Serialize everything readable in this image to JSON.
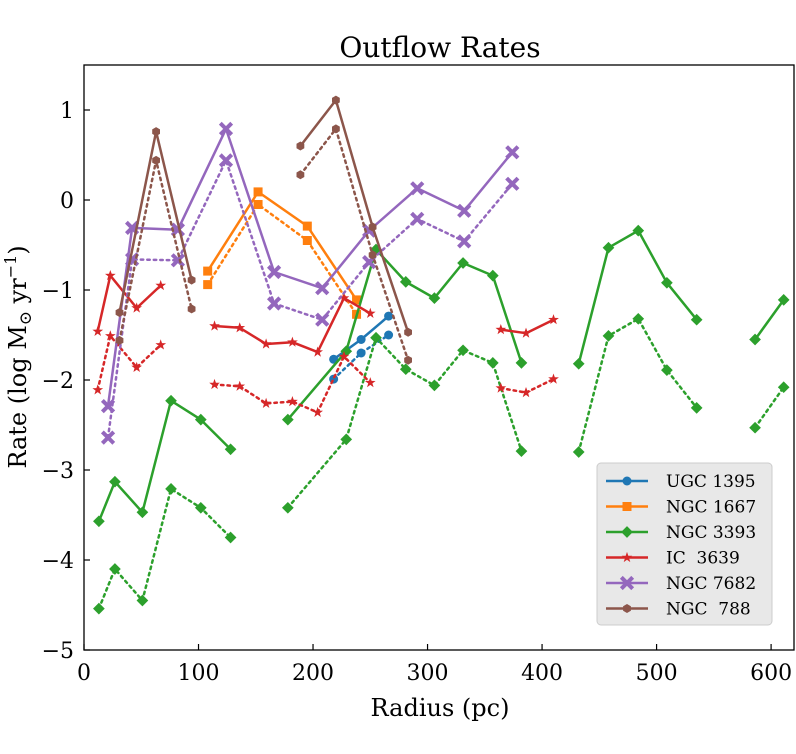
{
  "chart_data": {
    "type": "line",
    "title": "Outflow Rates",
    "xlabel": "Radius (pc)",
    "ylabel": "Rate (log M",
    "ylabel_symbol": "⊙",
    "ylabel_unit": " yr",
    "ylabel_exp": "−1",
    "ylabel_close": ")",
    "xlim": [
      0,
      620
    ],
    "ylim": [
      -5,
      1.5
    ],
    "xticks": [
      0,
      100,
      200,
      300,
      400,
      500,
      600
    ],
    "xtick_labels": [
      "0",
      "100",
      "200",
      "300",
      "400",
      "500",
      "600"
    ],
    "yticks": [
      -5,
      -4,
      -3,
      -2,
      -1,
      0,
      1
    ],
    "ytick_labels": [
      "−5",
      "−4",
      "−3",
      "−2",
      "−1",
      "0",
      "1"
    ],
    "legend_position": "lower-right",
    "grid": false,
    "series": [
      {
        "name": "UGC 1395",
        "color": "#1f77b4",
        "marker": "circle",
        "solid": [
          [
            218,
            -1.77
          ],
          [
            242,
            -1.55
          ],
          [
            266,
            -1.29
          ]
        ],
        "dotted": [
          [
            218,
            -1.99
          ],
          [
            242,
            -1.7
          ],
          [
            266,
            -1.5
          ]
        ]
      },
      {
        "name": "NGC 1667",
        "color": "#ff7f0e",
        "marker": "square",
        "solid": [
          [
            108,
            -0.79
          ],
          [
            152,
            0.09
          ],
          [
            195,
            -0.29
          ],
          [
            238,
            -1.11
          ]
        ],
        "dotted": [
          [
            108,
            -0.94
          ],
          [
            152,
            -0.05
          ],
          [
            195,
            -0.45
          ],
          [
            238,
            -1.27
          ]
        ]
      },
      {
        "name": "NGC 3393",
        "color": "#2ca02c",
        "marker": "diamond",
        "segments_solid": [
          [
            [
              13,
              -3.57
            ],
            [
              27,
              -3.13
            ],
            [
              51,
              -3.47
            ],
            [
              76,
              -2.23
            ],
            [
              102,
              -2.44
            ],
            [
              128,
              -2.77
            ]
          ],
          [
            [
              178,
              -2.44
            ],
            [
              229,
              -1.68
            ],
            [
              255,
              -0.55
            ],
            [
              281,
              -0.91
            ],
            [
              306,
              -1.09
            ],
            [
              331,
              -0.7
            ],
            [
              357,
              -0.84
            ],
            [
              382,
              -1.81
            ]
          ],
          [
            [
              432,
              -1.82
            ],
            [
              458,
              -0.53
            ],
            [
              484,
              -0.34
            ],
            [
              509,
              -0.92
            ],
            [
              535,
              -1.33
            ]
          ],
          [
            [
              586,
              -1.55
            ],
            [
              611,
              -1.11
            ]
          ]
        ],
        "segments_dotted": [
          [
            [
              13,
              -4.54
            ],
            [
              27,
              -4.1
            ],
            [
              51,
              -4.45
            ],
            [
              76,
              -3.21
            ],
            [
              102,
              -3.42
            ],
            [
              128,
              -3.75
            ]
          ],
          [
            [
              178,
              -3.42
            ],
            [
              229,
              -2.66
            ],
            [
              255,
              -1.53
            ],
            [
              281,
              -1.88
            ],
            [
              306,
              -2.06
            ],
            [
              331,
              -1.67
            ],
            [
              357,
              -1.81
            ],
            [
              382,
              -2.79
            ]
          ],
          [
            [
              432,
              -2.8
            ],
            [
              458,
              -1.51
            ],
            [
              484,
              -1.32
            ],
            [
              509,
              -1.89
            ],
            [
              535,
              -2.31
            ]
          ],
          [
            [
              586,
              -2.53
            ],
            [
              611,
              -2.08
            ]
          ]
        ]
      },
      {
        "name": "IC  3639",
        "color": "#d62728",
        "marker": "star",
        "segments_solid": [
          [
            [
              12,
              -1.46
            ],
            [
              23,
              -0.84
            ],
            [
              46,
              -1.2
            ],
            [
              67,
              -0.95
            ]
          ],
          [
            [
              114,
              -1.4
            ],
            [
              136,
              -1.42
            ],
            [
              159,
              -1.6
            ],
            [
              182,
              -1.58
            ],
            [
              204,
              -1.69
            ],
            [
              227,
              -1.09
            ],
            [
              250,
              -1.26
            ]
          ],
          [
            [
              364,
              -1.44
            ],
            [
              386,
              -1.48
            ],
            [
              410,
              -1.33
            ]
          ]
        ],
        "segments_dotted": [
          [
            [
              12,
              -2.11
            ],
            [
              23,
              -1.51
            ],
            [
              46,
              -1.86
            ],
            [
              67,
              -1.61
            ]
          ],
          [
            [
              114,
              -2.05
            ],
            [
              136,
              -2.07
            ],
            [
              159,
              -2.26
            ],
            [
              182,
              -2.24
            ],
            [
              204,
              -2.36
            ],
            [
              227,
              -1.74
            ],
            [
              250,
              -2.03
            ]
          ],
          [
            [
              364,
              -2.09
            ],
            [
              386,
              -2.14
            ],
            [
              410,
              -1.99
            ]
          ]
        ]
      },
      {
        "name": "NGC 7682",
        "color": "#9467bd",
        "marker": "x",
        "solid": [
          [
            21,
            -2.29
          ],
          [
            42,
            -0.31
          ],
          [
            82,
            -0.33
          ],
          [
            124,
            0.79
          ],
          [
            166,
            -0.8
          ],
          [
            208,
            -0.98
          ],
          [
            249,
            -0.34
          ],
          [
            291,
            0.13
          ],
          [
            332,
            -0.12
          ],
          [
            374,
            0.53
          ]
        ],
        "dotted": [
          [
            21,
            -2.64
          ],
          [
            42,
            -0.66
          ],
          [
            82,
            -0.67
          ],
          [
            124,
            0.44
          ],
          [
            166,
            -1.15
          ],
          [
            208,
            -1.33
          ],
          [
            249,
            -0.69
          ],
          [
            291,
            -0.21
          ],
          [
            332,
            -0.46
          ],
          [
            374,
            0.18
          ]
        ]
      },
      {
        "name": "NGC  788",
        "color": "#8c564b",
        "marker": "hexagon",
        "segments_solid": [
          [
            [
              31,
              -1.25
            ],
            [
              63,
              0.76
            ],
            [
              94,
              -0.89
            ]
          ],
          [
            [
              189,
              0.6
            ],
            [
              220,
              1.11
            ],
            [
              252,
              -0.3
            ],
            [
              283,
              -1.47
            ]
          ]
        ],
        "segments_dotted": [
          [
            [
              31,
              -1.56
            ],
            [
              63,
              0.44
            ],
            [
              94,
              -1.21
            ]
          ],
          [
            [
              189,
              0.28
            ],
            [
              220,
              0.79
            ],
            [
              252,
              -0.61
            ],
            [
              283,
              -1.78
            ]
          ]
        ]
      }
    ]
  }
}
